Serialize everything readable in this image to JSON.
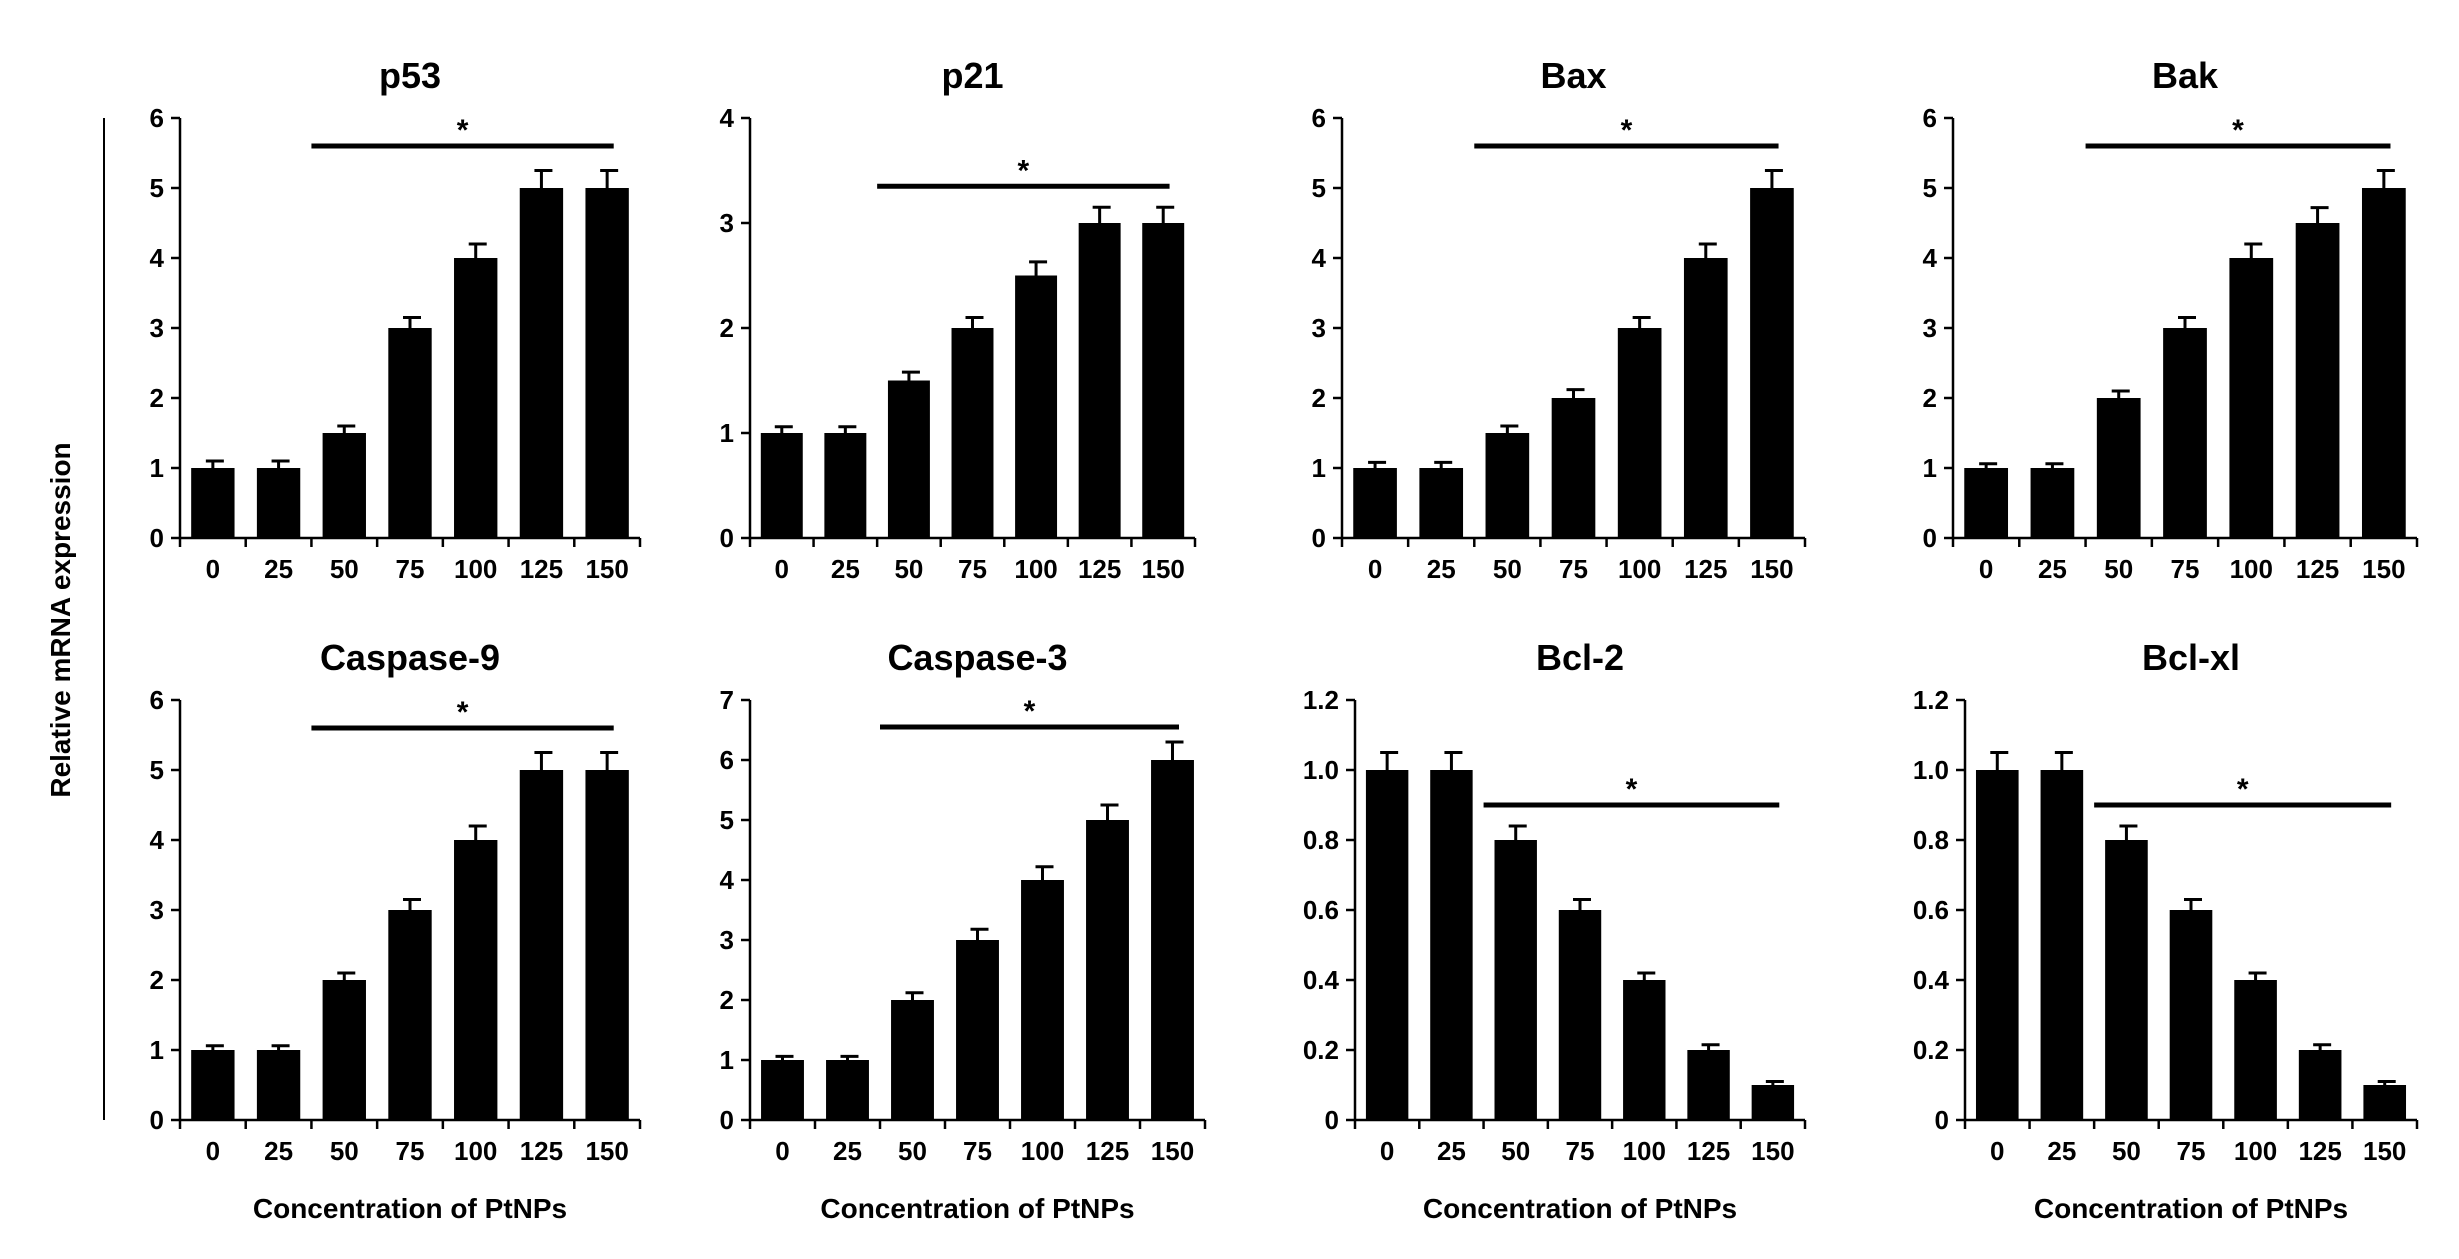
{
  "figure": {
    "ylabel": "Relative mRNA expression",
    "xlabel": "Concentration of PtNPs"
  },
  "colors": {
    "bar": "#000000",
    "axis": "#000000",
    "background": "#ffffff"
  },
  "chart_data": [
    {
      "type": "bar",
      "title": "p53",
      "categories": [
        "0",
        "25",
        "50",
        "75",
        "100",
        "125",
        "150"
      ],
      "values": [
        1,
        1,
        1.5,
        3,
        4,
        5,
        5
      ],
      "errors": [
        0.1,
        0.1,
        0.1,
        0.15,
        0.2,
        0.25,
        0.25
      ],
      "ylim": [
        0,
        6
      ],
      "yticks": [
        "0",
        "1",
        "2",
        "3",
        "4",
        "5",
        "6"
      ],
      "xlabel": "",
      "significance": {
        "label": "*",
        "from_category": "50",
        "to_category": "150",
        "y": 5.6
      }
    },
    {
      "type": "bar",
      "title": "p21",
      "categories": [
        "0",
        "25",
        "50",
        "75",
        "100",
        "125",
        "150"
      ],
      "values": [
        1,
        1,
        1.5,
        2,
        2.5,
        3,
        3
      ],
      "errors": [
        0.06,
        0.06,
        0.08,
        0.1,
        0.13,
        0.15,
        0.15
      ],
      "ylim": [
        0,
        4
      ],
      "yticks": [
        "0",
        "1",
        "2",
        "3",
        "4"
      ],
      "xlabel": "",
      "significance": {
        "label": "*",
        "from_category": "50",
        "to_category": "150",
        "y": 3.35
      }
    },
    {
      "type": "bar",
      "title": "Bax",
      "categories": [
        "0",
        "25",
        "50",
        "75",
        "100",
        "125",
        "150"
      ],
      "values": [
        1,
        1,
        1.5,
        2,
        3,
        4,
        5
      ],
      "errors": [
        0.08,
        0.08,
        0.1,
        0.12,
        0.15,
        0.2,
        0.25
      ],
      "ylim": [
        0,
        6
      ],
      "yticks": [
        "0",
        "1",
        "2",
        "3",
        "4",
        "5",
        "6"
      ],
      "xlabel": "",
      "significance": {
        "label": "*",
        "from_category": "50",
        "to_category": "150",
        "y": 5.6
      }
    },
    {
      "type": "bar",
      "title": "Bak",
      "categories": [
        "0",
        "25",
        "50",
        "75",
        "100",
        "125",
        "150"
      ],
      "values": [
        1,
        1,
        2,
        3,
        4,
        4.5,
        5
      ],
      "errors": [
        0.06,
        0.06,
        0.1,
        0.15,
        0.2,
        0.22,
        0.25
      ],
      "ylim": [
        0,
        6
      ],
      "yticks": [
        "0",
        "1",
        "2",
        "3",
        "4",
        "5",
        "6"
      ],
      "xlabel": "",
      "significance": {
        "label": "*",
        "from_category": "50",
        "to_category": "150",
        "y": 5.6
      }
    },
    {
      "type": "bar",
      "title": "Caspase-9",
      "categories": [
        "0",
        "25",
        "50",
        "75",
        "100",
        "125",
        "150"
      ],
      "values": [
        1,
        1,
        2,
        3,
        4,
        5,
        5
      ],
      "errors": [
        0.06,
        0.06,
        0.1,
        0.15,
        0.2,
        0.25,
        0.25
      ],
      "ylim": [
        0,
        6
      ],
      "yticks": [
        "0",
        "1",
        "2",
        "3",
        "4",
        "5",
        "6"
      ],
      "xlabel": "Concentration of PtNPs",
      "significance": {
        "label": "*",
        "from_category": "50",
        "to_category": "150",
        "y": 5.6
      }
    },
    {
      "type": "bar",
      "title": "Caspase-3",
      "categories": [
        "0",
        "25",
        "50",
        "75",
        "100",
        "125",
        "150"
      ],
      "values": [
        1,
        1,
        2,
        3,
        4,
        5,
        6
      ],
      "errors": [
        0.06,
        0.06,
        0.12,
        0.18,
        0.22,
        0.25,
        0.3
      ],
      "ylim": [
        0,
        7
      ],
      "yticks": [
        "0",
        "1",
        "2",
        "3",
        "4",
        "5",
        "6",
        "7"
      ],
      "xlabel": "Concentration of PtNPs",
      "significance": {
        "label": "*",
        "from_category": "50",
        "to_category": "150",
        "y": 6.55
      }
    },
    {
      "type": "bar",
      "title": "Bcl-2",
      "categories": [
        "0",
        "25",
        "50",
        "75",
        "100",
        "125",
        "150"
      ],
      "values": [
        1.0,
        1.0,
        0.8,
        0.6,
        0.4,
        0.2,
        0.1
      ],
      "errors": [
        0.05,
        0.05,
        0.04,
        0.03,
        0.02,
        0.015,
        0.01
      ],
      "ylim": [
        0,
        1.2
      ],
      "yticks": [
        "0",
        "0.2",
        "0.4",
        "0.6",
        "0.8",
        "1.0",
        "1.2"
      ],
      "xlabel": "Concentration of PtNPs",
      "significance": {
        "label": "*",
        "from_category": "50",
        "to_category": "150",
        "y": 0.9
      }
    },
    {
      "type": "bar",
      "title": "Bcl-xl",
      "categories": [
        "0",
        "25",
        "50",
        "75",
        "100",
        "125",
        "150"
      ],
      "values": [
        1.0,
        1.0,
        0.8,
        0.6,
        0.4,
        0.2,
        0.1
      ],
      "errors": [
        0.05,
        0.05,
        0.04,
        0.03,
        0.02,
        0.015,
        0.01
      ],
      "ylim": [
        0,
        1.2
      ],
      "yticks": [
        "0",
        "0.2",
        "0.4",
        "0.6",
        "0.8",
        "1.0",
        "1.2"
      ],
      "xlabel": "Concentration of PtNPs",
      "significance": {
        "label": "*",
        "from_category": "50",
        "to_category": "150",
        "y": 0.9
      }
    }
  ]
}
